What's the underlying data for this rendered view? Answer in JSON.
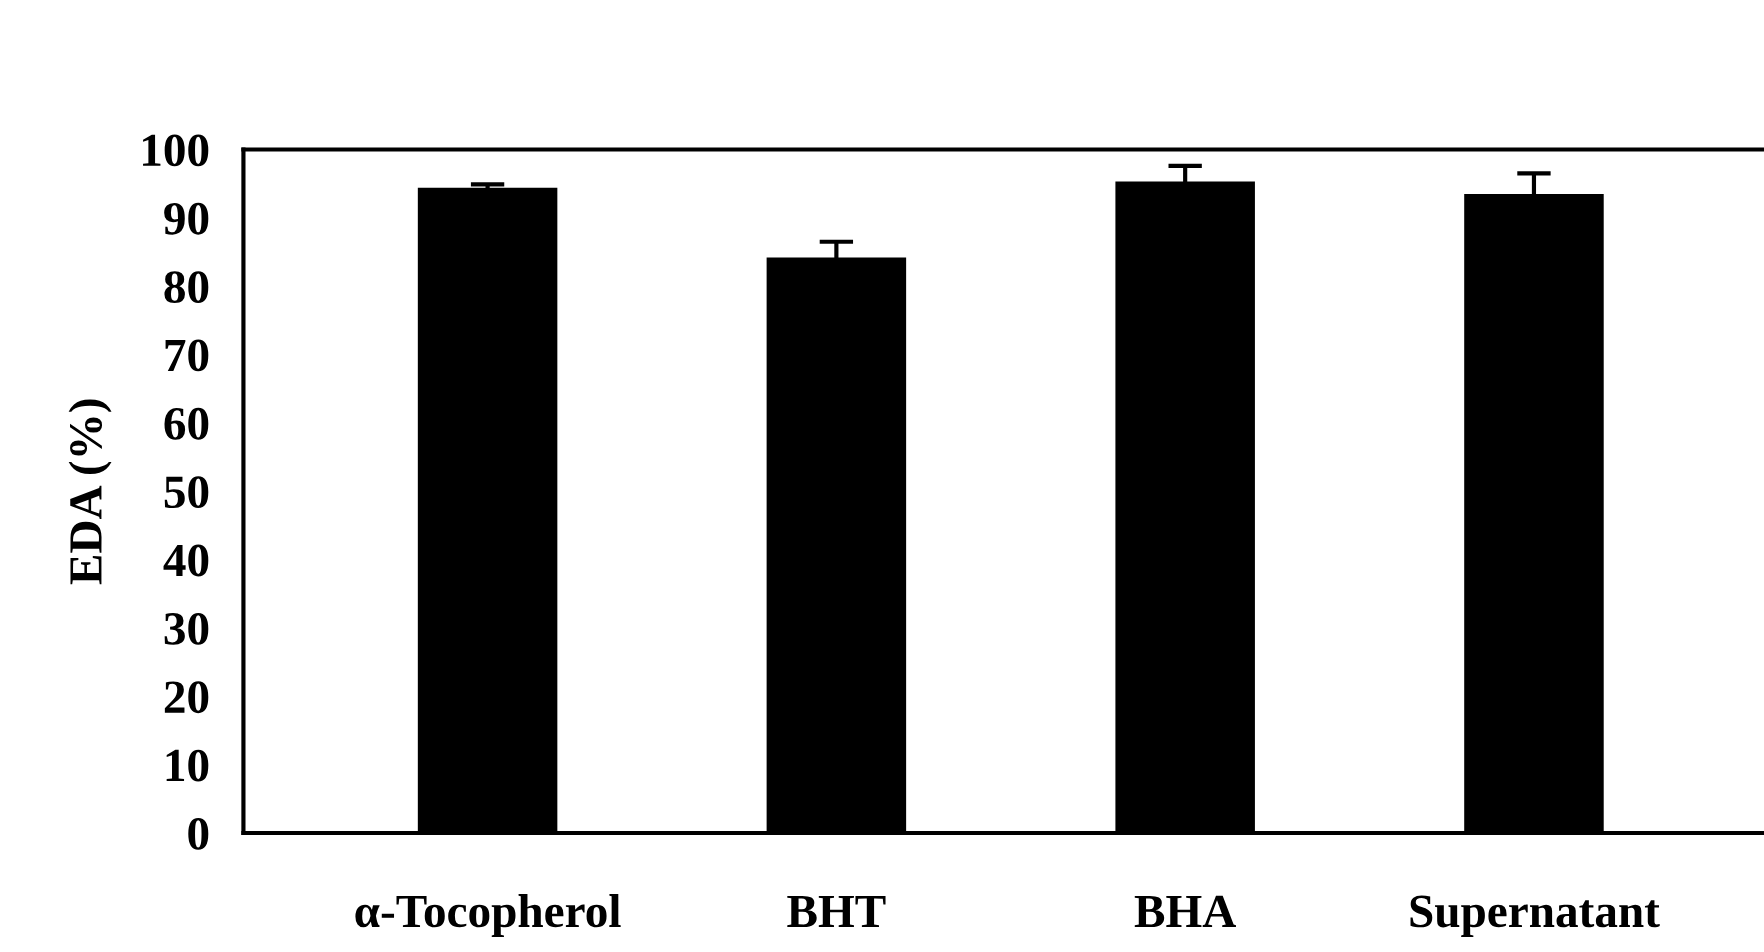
{
  "chart_data": {
    "type": "bar",
    "ylabel": "EDA (%)",
    "categories": [
      "α-Tocopherol",
      "BHT",
      "BHA",
      "Supernatant"
    ],
    "values": [
      94.4,
      84.2,
      95.3,
      93.5
    ],
    "color": "#000000",
    "errors": [
      0.5,
      2.3,
      2.3,
      3
    ],
    "ylim": [
      0,
      100
    ],
    "yticks": [
      0,
      10,
      20,
      30,
      40,
      50,
      60,
      70,
      80,
      90,
      100
    ],
    "grid": false,
    "legend": false
  }
}
